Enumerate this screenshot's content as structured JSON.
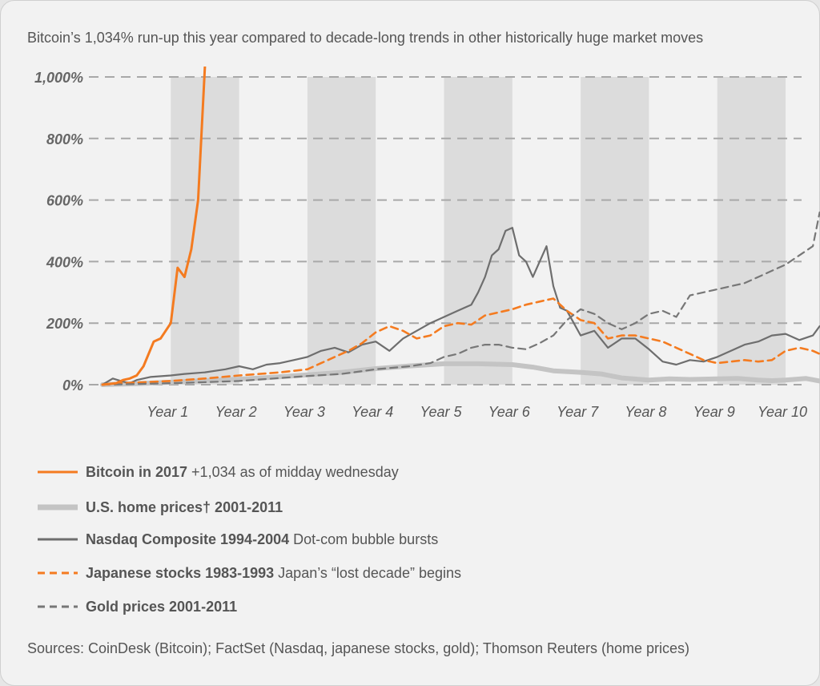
{
  "subtitle": "Bitcoin’s 1,034% run-up this year compared to decade-long trends in other historically huge market moves",
  "sources": "Sources: CoinDesk (Bitcoin); FactSet (Nasdaq, japanese stocks, gold); Thomson Reuters (home prices)",
  "colors": {
    "orange": "#f47b20",
    "gray_dark": "#6e6e6e",
    "gray_light": "#c4c4c4",
    "gray_mid": "#777777",
    "band": "#dcdcdc",
    "grid": "#a8a8a8"
  },
  "legend": [
    {
      "name": "Bitcoin in 2017",
      "note": "+1,034 as of midday wednesday",
      "series": "bitcoin"
    },
    {
      "name": "U.S. home prices† 2001-2011",
      "note": "",
      "series": "home"
    },
    {
      "name": "Nasdaq Composite 1994-2004",
      "note": "Dot-com bubble bursts",
      "series": "nasdaq"
    },
    {
      "name": "Japanese stocks 1983-1993",
      "note": "Japan’s “lost decade” begins",
      "series": "japan"
    },
    {
      "name": "Gold prices 2001-2011",
      "note": "",
      "series": "gold"
    }
  ],
  "chart_data": {
    "type": "line",
    "title": "Bitcoin’s 1,034% run-up this year compared to decade-long trends in other historically huge market moves",
    "xlabel": "",
    "ylabel": "",
    "xlim": [
      0,
      10
    ],
    "ylim": [
      0,
      1000
    ],
    "y_ticks": [
      0,
      200,
      400,
      600,
      800,
      1000
    ],
    "y_tick_labels": [
      "0%",
      "200%",
      "400%",
      "600%",
      "800%",
      "1,000%"
    ],
    "x_ticks": [
      1,
      2,
      3,
      4,
      5,
      6,
      7,
      8,
      9,
      10
    ],
    "x_tick_labels": [
      "Year 1",
      "Year 2",
      "Year 3",
      "Year 4",
      "Year 5",
      "Year 6",
      "Year 7",
      "Year 8",
      "Year 9",
      "Year 10"
    ],
    "shaded_years": [
      1,
      3,
      5,
      7,
      9
    ],
    "grid": true,
    "series": [
      {
        "name": "U.S. home prices† 2001-2011",
        "id": "home",
        "style": "solid-thick",
        "x": [
          0,
          0.5,
          1,
          1.5,
          2,
          2.5,
          3,
          3.5,
          4,
          4.5,
          5,
          5.5,
          6,
          6.3,
          6.6,
          7,
          7.3,
          7.6,
          8,
          8.3,
          8.6,
          9,
          9.3,
          9.6,
          9.8,
          10,
          10.3,
          10.5
        ],
        "values": [
          0,
          3,
          8,
          13,
          18,
          24,
          32,
          40,
          52,
          61,
          68,
          68,
          65,
          57,
          45,
          40,
          35,
          22,
          15,
          19,
          17,
          19,
          20,
          15,
          13,
          15,
          20,
          12
        ]
      },
      {
        "name": "Nasdaq Composite 1994-2004",
        "id": "nasdaq",
        "style": "solid",
        "x": [
          0,
          0.15,
          0.3,
          0.4,
          0.5,
          0.7,
          1,
          1.2,
          1.5,
          1.8,
          2,
          2.2,
          2.4,
          2.6,
          2.8,
          3,
          3.2,
          3.4,
          3.6,
          3.8,
          4,
          4.2,
          4.4,
          4.6,
          4.8,
          5,
          5.2,
          5.4,
          5.5,
          5.6,
          5.7,
          5.8,
          5.9,
          6,
          6.1,
          6.2,
          6.3,
          6.4,
          6.5,
          6.6,
          6.7,
          6.8,
          6.9,
          7,
          7.2,
          7.4,
          7.6,
          7.8,
          8,
          8.2,
          8.4,
          8.6,
          8.8,
          9,
          9.2,
          9.4,
          9.6,
          9.8,
          10,
          10.2,
          10.4,
          10.5
        ],
        "values": [
          0,
          20,
          10,
          5,
          15,
          25,
          30,
          35,
          40,
          50,
          60,
          50,
          65,
          70,
          80,
          90,
          110,
          120,
          105,
          130,
          140,
          110,
          150,
          175,
          200,
          220,
          240,
          260,
          300,
          350,
          420,
          440,
          500,
          510,
          420,
          400,
          350,
          400,
          450,
          320,
          250,
          240,
          200,
          160,
          175,
          120,
          150,
          150,
          115,
          75,
          65,
          80,
          75,
          90,
          110,
          130,
          140,
          160,
          165,
          145,
          160,
          190
        ]
      },
      {
        "name": "Japanese stocks 1983-1993",
        "id": "japan",
        "style": "dashed",
        "x": [
          0,
          0.3,
          0.6,
          1,
          1.5,
          2,
          2.3,
          2.6,
          3,
          3.2,
          3.4,
          3.6,
          3.8,
          4,
          4.2,
          4.4,
          4.6,
          4.8,
          5,
          5.2,
          5.4,
          5.6,
          5.8,
          6,
          6.2,
          6.4,
          6.6,
          6.8,
          7,
          7.2,
          7.4,
          7.6,
          7.8,
          8,
          8.2,
          8.4,
          8.6,
          8.8,
          9,
          9.2,
          9.4,
          9.6,
          9.8,
          10,
          10.2,
          10.4,
          10.5
        ],
        "values": [
          0,
          5,
          8,
          12,
          20,
          30,
          35,
          40,
          50,
          70,
          90,
          110,
          135,
          170,
          190,
          175,
          150,
          160,
          190,
          200,
          195,
          225,
          235,
          245,
          260,
          270,
          280,
          240,
          210,
          200,
          150,
          160,
          160,
          150,
          140,
          120,
          100,
          80,
          70,
          75,
          80,
          75,
          80,
          110,
          120,
          110,
          100
        ]
      },
      {
        "name": "Gold prices 2001-2011",
        "id": "gold",
        "style": "dashed",
        "x": [
          0,
          0.5,
          1,
          1.5,
          2,
          2.5,
          3,
          3.5,
          4,
          4.5,
          4.8,
          5,
          5.2,
          5.4,
          5.6,
          5.8,
          6,
          6.2,
          6.4,
          6.6,
          6.8,
          7,
          7.2,
          7.4,
          7.6,
          7.8,
          8,
          8.2,
          8.4,
          8.6,
          8.8,
          9,
          9.2,
          9.4,
          9.6,
          9.8,
          10,
          10.2,
          10.4,
          10.5
        ],
        "values": [
          0,
          2,
          5,
          8,
          12,
          20,
          28,
          35,
          50,
          60,
          70,
          90,
          100,
          120,
          130,
          130,
          120,
          115,
          135,
          160,
          210,
          245,
          230,
          200,
          180,
          200,
          230,
          240,
          220,
          290,
          300,
          310,
          320,
          330,
          350,
          370,
          390,
          420,
          450,
          560
        ]
      },
      {
        "name": "Bitcoin in 2017",
        "id": "bitcoin",
        "style": "solid",
        "x": [
          0,
          0.2,
          0.3,
          0.4,
          0.5,
          0.6,
          0.75,
          0.85,
          1,
          1.1,
          1.2,
          1.3,
          1.4,
          1.5
        ],
        "values": [
          0,
          5,
          15,
          20,
          30,
          60,
          140,
          150,
          200,
          380,
          350,
          440,
          600,
          1034
        ]
      }
    ]
  }
}
